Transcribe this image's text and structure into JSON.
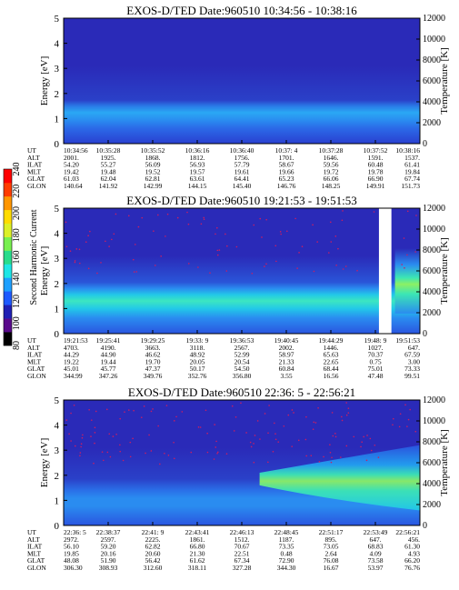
{
  "chart_data": [
    {
      "type": "heatmap",
      "title": "EXOS-D/TED  Date:960510  10:34:56 - 10:38:16",
      "ylabel": "Energy [eV]",
      "y2label": "Temperature [K]",
      "ylim": [
        0,
        5
      ],
      "y2lim": [
        0,
        12000
      ],
      "yticks": [
        "0",
        "1",
        "2",
        "3",
        "4",
        "5"
      ],
      "y2ticks": [
        "0",
        "2000",
        "4000",
        "6000",
        "8000",
        "10000",
        "12000"
      ],
      "rows": [
        {
          "label": "UT",
          "values": [
            "10:34:56",
            "10:35:28",
            "10:35:52",
            "10:36:16",
            "10:36:40",
            "10:37: 4",
            "10:37:28",
            "10:37:52",
            "10:38:16"
          ]
        },
        {
          "label": "ALT",
          "values": [
            "2001.",
            "1925.",
            "1868.",
            "1812.",
            "1756.",
            "1701.",
            "1646.",
            "1591.",
            "1537."
          ]
        },
        {
          "label": "ILAT",
          "values": [
            "54.20",
            "55.27",
            "56.09",
            "56.93",
            "57.79",
            "58.67",
            "59.56",
            "60.48",
            "61.41"
          ]
        },
        {
          "label": "MLT",
          "values": [
            "19.42",
            "19.48",
            "19.52",
            "19.57",
            "19.61",
            "19.66",
            "19.72",
            "19.78",
            "19.84"
          ]
        },
        {
          "label": "GLAT",
          "values": [
            "61.03",
            "62.04",
            "62.81",
            "63.61",
            "64.41",
            "65.23",
            "66.06",
            "66.90",
            "67.74"
          ]
        },
        {
          "label": "GLON",
          "values": [
            "140.64",
            "141.92",
            "142.99",
            "144.15",
            "145.40",
            "146.76",
            "148.25",
            "149.91",
            "151.73"
          ]
        }
      ],
      "gap": null,
      "profile": "stable"
    },
    {
      "type": "heatmap",
      "title": "EXOS-D/TED  Date:960510  19:21:53 - 19:51:53",
      "ylabel": "Energy [eV]",
      "y2label": "Temperature [K]",
      "ylim": [
        0,
        5
      ],
      "y2lim": [
        0,
        12000
      ],
      "yticks": [
        "0",
        "1",
        "2",
        "3",
        "4",
        "5"
      ],
      "y2ticks": [
        "0",
        "2000",
        "4000",
        "6000",
        "8000",
        "10000",
        "12000"
      ],
      "rows": [
        {
          "label": "UT",
          "values": [
            "19:21:53",
            "19:25:41",
            "19:29:25",
            "19:33: 9",
            "19:36:53",
            "19:40:45",
            "19:44:29",
            "19:48: 9",
            "19:51:53"
          ]
        },
        {
          "label": "ALT",
          "values": [
            "4703.",
            "4190.",
            "3663.",
            "3118.",
            "2567.",
            "2002.",
            "1446.",
            "1027.",
            "647."
          ]
        },
        {
          "label": "ILAT",
          "values": [
            "44.29",
            "44.90",
            "46.62",
            "48.92",
            "52.99",
            "58.97",
            "65.63",
            "70.37",
            "67.59"
          ]
        },
        {
          "label": "MLT",
          "values": [
            "19.22",
            "19.44",
            "19.70",
            "20.05",
            "20.54",
            "21.33",
            "22.65",
            "0.75",
            "3.00"
          ]
        },
        {
          "label": "GLAT",
          "values": [
            "45.01",
            "45.77",
            "47.37",
            "50.17",
            "54.50",
            "60.84",
            "68.44",
            "75.01",
            "73.33"
          ]
        },
        {
          "label": "GLON",
          "values": [
            "344.99",
            "347.26",
            "349.76",
            "352.76",
            "356.80",
            "3.55",
            "16.56",
            "47.48",
            "99.51"
          ]
        }
      ],
      "gap": [
        0.885,
        0.92
      ],
      "profile": "mid"
    },
    {
      "type": "heatmap",
      "title": "EXOS-D/TED  Date:960510  22:36: 5 - 22:56:21",
      "ylabel": "Energy [eV]",
      "y2label": "Temperature [K]",
      "ylim": [
        0,
        5
      ],
      "y2lim": [
        0,
        12000
      ],
      "yticks": [
        "0",
        "1",
        "2",
        "3",
        "4",
        "5"
      ],
      "y2ticks": [
        "0",
        "2000",
        "4000",
        "6000",
        "8000",
        "10000",
        "12000"
      ],
      "rows": [
        {
          "label": "UT",
          "values": [
            "22:36: 5",
            "22:38:37",
            "22:41: 9",
            "22:43:41",
            "22:46:13",
            "22:48:45",
            "22:51:17",
            "22:53:49",
            "22:56:21"
          ]
        },
        {
          "label": "ALT",
          "values": [
            "2972.",
            "2597.",
            "2225.",
            "1861.",
            "1512.",
            "1187.",
            "895.",
            "647.",
            "456."
          ]
        },
        {
          "label": "ILAT",
          "values": [
            "56.10",
            "59.20",
            "62.82",
            "66.80",
            "70.67",
            "73.35",
            "73.05",
            "68.83",
            "61.30"
          ]
        },
        {
          "label": "MLT",
          "values": [
            "19.85",
            "20.16",
            "20.60",
            "21.30",
            "22.51",
            "0.48",
            "2.64",
            "4.09",
            "4.93"
          ]
        },
        {
          "label": "GLAT",
          "values": [
            "48.08",
            "51.90",
            "56.42",
            "61.62",
            "67.34",
            "72.90",
            "76.08",
            "73.58",
            "66.20"
          ]
        },
        {
          "label": "GLON",
          "values": [
            "306.30",
            "308.93",
            "312.60",
            "318.11",
            "327.28",
            "344.30",
            "16.67",
            "53.97",
            "76.76"
          ]
        }
      ],
      "gap": null,
      "profile": "late"
    }
  ],
  "colorbar": {
    "label": "Second Harmonic Current",
    "ticks": [
      "80",
      "100",
      "120",
      "140",
      "160",
      "180",
      "200",
      "220",
      "240"
    ],
    "colors": [
      "#000000",
      "#5a0a8c",
      "#2020b4",
      "#1e5aff",
      "#1ea0ff",
      "#1ee6e6",
      "#28dc8c",
      "#78f050",
      "#dcf028",
      "#ffdc00",
      "#ff9600",
      "#ff3c00",
      "#ff0000"
    ]
  }
}
